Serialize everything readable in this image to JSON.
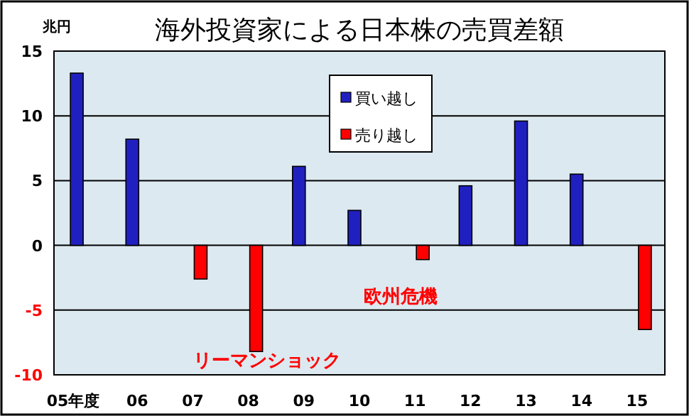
{
  "chart_data": {
    "type": "bar",
    "title": "海外投資家による日本株の売買差額",
    "ylabel": "兆円",
    "categories": [
      "05年度",
      "06",
      "07",
      "08",
      "09",
      "10",
      "11",
      "12",
      "13",
      "14",
      "15"
    ],
    "series": [
      {
        "name": "買い越し",
        "color": "#2020c0",
        "values": [
          13.3,
          8.2,
          null,
          null,
          6.1,
          2.7,
          null,
          4.6,
          9.6,
          5.5,
          null
        ]
      },
      {
        "name": "売り越し",
        "color": "#ff0000",
        "values": [
          null,
          null,
          -2.6,
          -8.2,
          null,
          null,
          -1.1,
          null,
          null,
          null,
          -6.5
        ]
      }
    ],
    "ylim": [
      -10,
      15
    ],
    "yticks": [
      -10,
      -5,
      0,
      5,
      10,
      15
    ],
    "grid": "y",
    "legend": "top",
    "annotations": [
      "リーマンショック",
      "欧州危機"
    ]
  }
}
